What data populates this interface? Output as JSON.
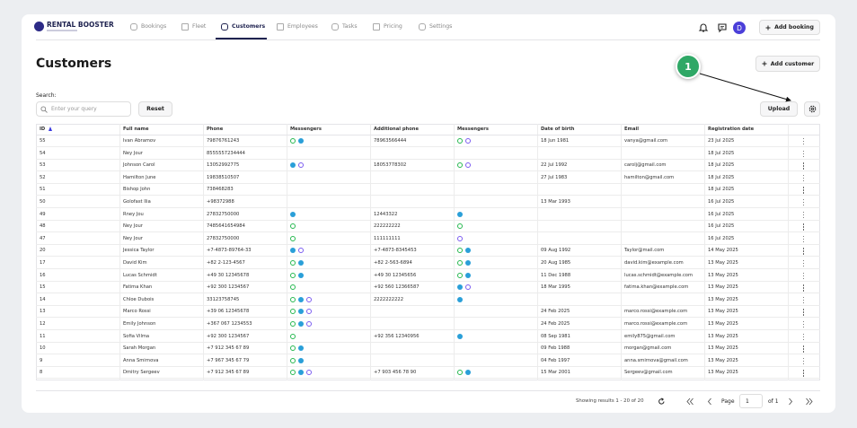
{
  "header": {
    "brand": "RENTAL BOOSTER",
    "nav": [
      "Bookings",
      "Fleet",
      "Customers",
      "Employees",
      "Tasks",
      "Pricing",
      "Settings"
    ],
    "avatar": "D",
    "add_booking": "Add booking"
  },
  "page": {
    "title": "Customers",
    "add_customer": "Add customer",
    "callout": 1,
    "search_label": "Search:",
    "search_placeholder": "Enter your query",
    "reset": "Reset",
    "upload": "Upload"
  },
  "table": {
    "columns": [
      "ID",
      "Full name",
      "Phone",
      "Messengers",
      "Additional phone",
      "Messengers",
      "Date of birth",
      "Email",
      "Registration date"
    ],
    "rows": [
      [
        55,
        "Ivan Abramov",
        "79876761243",
        "78963566444",
        "18 Jun 1981",
        "vanya@gmail.com",
        "23 Jul 2025"
      ],
      [
        54,
        "Ney Jour",
        "8555557234444",
        null,
        null,
        null,
        "18 Jul 2025"
      ],
      [
        53,
        "Johnson Carol",
        "13052992775",
        "18053778302",
        "22 Jul 1992",
        "carolj@gmail.com",
        "18 Jul 2025"
      ],
      [
        52,
        "Hamilton June",
        "19838510507",
        null,
        "27 Jul 1983",
        "hamilton@gmail.com",
        "18 Jul 2025"
      ],
      [
        51,
        "Bishop John",
        "738468283",
        null,
        null,
        null,
        "18 Jul 2025"
      ],
      [
        50,
        "Golofast Ilia",
        "+98372988",
        null,
        "13 Mar 1993",
        null,
        "16 Jul 2025"
      ],
      [
        49,
        "Rney Jou",
        "27832750000",
        "12443322",
        null,
        null,
        "16 Jul 2025"
      ],
      [
        48,
        "Ney Jour",
        "7485641654984",
        "222222222",
        null,
        null,
        "16 Jul 2025"
      ],
      [
        47,
        "Ney Jour",
        "27832750000",
        "111111111",
        null,
        null,
        "16 Jul 2025"
      ],
      [
        20,
        "Jessica Taylor",
        "+7-4873-89764-33",
        "+7-4873-8345453",
        "09 Aug 1992",
        "Taylor@mail.com",
        "14 May 2025"
      ],
      [
        17,
        "David Kim",
        "+82 2-123-4567",
        "+82 2-563-6894",
        "20 Aug 1985",
        "david.kim@example.com",
        "13 May 2025"
      ],
      [
        16,
        "Lucas Schmidt",
        "+49 30 12345678",
        "+49 30 12345656",
        "11 Dec 1988",
        "lucas.schmidt@example.com",
        "13 May 2025"
      ],
      [
        15,
        "Fatima Khan",
        "+92 300 1234567",
        "+92 560 12366587",
        "18 Mar 1995",
        "fatima.khan@example.com",
        "13 May 2025"
      ],
      [
        14,
        "Chloe Dubois",
        "33123758745",
        "2222222222",
        null,
        null,
        "13 May 2025"
      ],
      [
        13,
        "Marco Rossi",
        "+39 06 12345678",
        null,
        "24 Feb 2025",
        "marco.rossi@example.com",
        "13 May 2025"
      ],
      [
        12,
        "Emily Johnson",
        "+367 067 1234553",
        null,
        "24 Feb 2025",
        "marco.rossi@example.com",
        "13 May 2025"
      ],
      [
        11,
        "Sofia Vilma",
        "+92 300 1234567",
        "+92 356 12340956",
        "08 Sep 1981",
        "emily875@gmail.com",
        "13 May 2025"
      ],
      [
        10,
        "Sarah Morgan",
        "+7 912 345 67 89",
        null,
        "09 Feb 1988",
        "morgan@gmail.com",
        "13 May 2025"
      ],
      [
        9,
        "Anna Smirnova",
        "+7 967 345 67 79",
        null,
        "04 Feb 1997",
        "anna.smirnova@gmail.com",
        "13 May 2025"
      ],
      [
        8,
        "Dmitry Sergeev",
        "+7 912 345 67 89",
        "+7 903 456 78 90",
        "15 Mar 2001",
        "Sergeev@gmail.com",
        "13 May 2025"
      ]
    ]
  },
  "footer": {
    "summary": "Showing results 1 - 20 of 20",
    "page_label": "Page",
    "page": 1,
    "of": "of 1"
  }
}
